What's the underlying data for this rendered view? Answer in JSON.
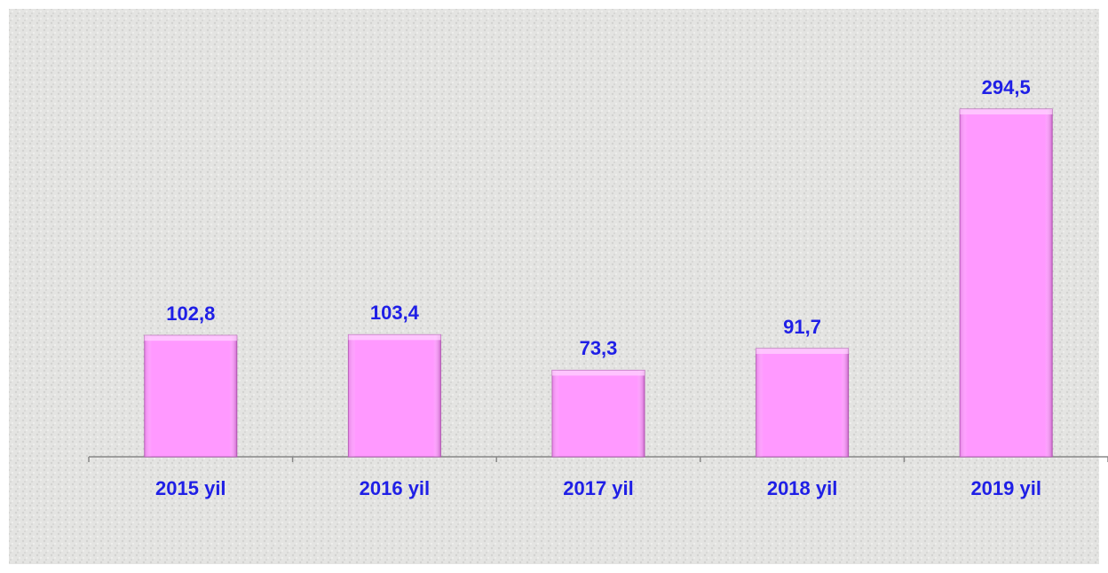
{
  "chart_data": {
    "type": "bar",
    "categories": [
      "2015 yil",
      "2016 yil",
      "2017 yil",
      "2018 yil",
      "2019 yil"
    ],
    "values": [
      102.8,
      103.4,
      73.3,
      91.7,
      294.5
    ],
    "value_labels": [
      "102,8",
      "103,4",
      "73,3",
      "91,7",
      "294,5"
    ],
    "color": "#ff99ff"
  }
}
